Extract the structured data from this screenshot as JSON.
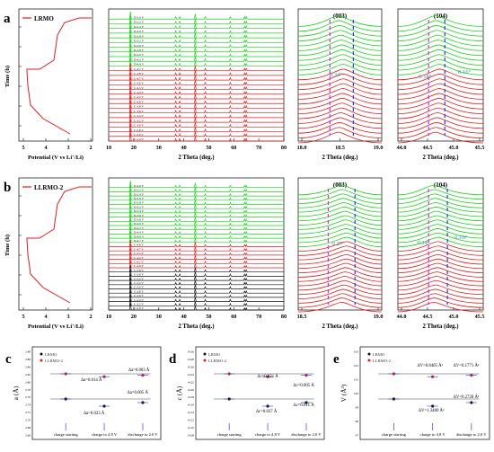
{
  "colors": {
    "green": "#1bd31b",
    "red": "#e01e1e",
    "black": "#111111",
    "blue": "#1f3fd6",
    "magenta": "#e02bd0",
    "teal": "#2f8f8f",
    "purple": "#7b3fe4"
  },
  "panel_labels": {
    "a": "a",
    "b": "b",
    "c": "c",
    "d": "d",
    "e": "e"
  },
  "legend": {
    "lrmo": "LRMO",
    "llrmo2": "LLRMO-2"
  },
  "texts": {
    "time_label": "Time (h)",
    "potential_label": "Potential (V vs Li",
    "potential_sup": "+",
    "potential_tail": "/Li)",
    "twotheta_label": "2 Theta (deg.)",
    "peak_003": "(003)",
    "peak_104": "(104)"
  },
  "chart_data": [
    {
      "type": "line",
      "panel": "a-voltage",
      "legend": "LRMO",
      "xlabel": "Potential (V vs Li+/Li)",
      "ylabel": "Time (h)",
      "x_ticks": [
        "5",
        "4",
        "3",
        "2"
      ],
      "xlim": [
        5,
        2
      ]
    },
    {
      "type": "line",
      "panel": "a-xrd-full",
      "xlabel": "2 Theta (deg.)",
      "x_ticks": [
        "10",
        "20",
        "30",
        "40",
        "50",
        "60",
        "70",
        "80"
      ],
      "xlim": [
        10,
        80
      ],
      "scan_labels": [
        "D-2.0 V",
        "D-2.2 V",
        "D-2.4 V",
        "D-2.6 V",
        "D-2.8 V",
        "D-3.2 V",
        "D-3.6 V",
        "D-3.8 V",
        "D-4.0 V",
        "D-4.2 V",
        "D-4.4 V",
        "C-4.7 V",
        "C-4.8 V",
        "C-4.7 V",
        "C-4.6 V",
        "C-4.5 V",
        "C-4.4 V",
        "C-4.2 V",
        "C-4.0 V",
        "C-3.8 V",
        "C-3.6 V",
        "C-3.4 V",
        "C-3.2 V",
        "C-3.0 V",
        "C-2.8 V",
        "C-2.6 V",
        "C-2.4 V"
      ]
    },
    {
      "type": "line",
      "panel": "a-xrd-003",
      "xlabel": "2 Theta (deg.)",
      "x_ticks": [
        "18.0",
        "18.5",
        "19.0"
      ],
      "xlim": [
        18.0,
        19.0
      ],
      "annotations": [
        "(003)",
        "0.34°"
      ]
    },
    {
      "type": "line",
      "panel": "a-xrd-104",
      "xlabel": "2 Theta (deg.)",
      "x_ticks": [
        "44.0",
        "44.5",
        "45.0",
        "45.5"
      ],
      "xlim": [
        44.0,
        45.5
      ],
      "annotations": [
        "(104)",
        "0.18°",
        "0.16°"
      ]
    },
    {
      "type": "line",
      "panel": "b-voltage",
      "legend": "LLRMO-2",
      "xlabel": "Potential (V vs Li+/Li)",
      "ylabel": "Time (h)",
      "x_ticks": [
        "5",
        "4",
        "3",
        "2"
      ],
      "xlim": [
        5,
        2
      ]
    },
    {
      "type": "line",
      "panel": "b-xrd-full",
      "xlabel": "2 Theta (deg.)",
      "x_ticks": [
        "10",
        "20",
        "30",
        "40",
        "50",
        "60",
        "70",
        "80"
      ],
      "xlim": [
        10,
        80
      ],
      "scan_labels": [
        "D-2.0 V",
        "D-2.2 V",
        "D-2.4 V",
        "D-2.6 V",
        "D-2.8 V",
        "D-3.2 V",
        "D-3.4 V",
        "D-3.6 V",
        "D-3.8 V",
        "D-4.0 V",
        "D-4.2 V",
        "D-4.4 V",
        "D-4.6 V",
        "D-4.7 V",
        "C-4.8 V",
        "C-4.7 V",
        "C-4.5 V",
        "C-4.4 V",
        "C-4.2 V",
        "C-4.0 V",
        "C-3.8 V",
        "C-3.6 V",
        "C-3.4 V",
        "C-3.2 V",
        "C-3.0 V",
        "C-2.8 V",
        "C-2.6 V",
        "C-2.4 V",
        "C-2.2 V",
        "C-2.0 V"
      ]
    },
    {
      "type": "line",
      "panel": "b-xrd-003",
      "xlabel": "2 Theta (deg.)",
      "x_ticks": [
        "18.5",
        "19.0"
      ],
      "xlim": [
        18.2,
        19.1
      ],
      "annotations": [
        "(003)",
        "0.27°"
      ]
    },
    {
      "type": "line",
      "panel": "b-xrd-104",
      "xlabel": "2 Theta (deg.)",
      "x_ticks": [
        "44.0",
        "44.5",
        "45.0",
        "45.5"
      ],
      "xlim": [
        44.0,
        45.5
      ],
      "annotations": [
        "(104)",
        "0.14°",
        "0.16°"
      ]
    },
    {
      "type": "scatter",
      "panel": "c",
      "ylabel": "a (Å)",
      "y_ticks": [
        "2.88",
        "2.86",
        "2.84",
        "2.82",
        "2.80",
        "2.78",
        "2.76",
        "2.74",
        "2.72",
        "2.70",
        "2.68",
        "2.66"
      ],
      "categories": [
        "charge starting",
        "charge to 4.8 V",
        "discharge to 2.0 V"
      ],
      "series": [
        {
          "name": "LRMO",
          "values": [
            2.707,
            2.7,
            2.701
          ]
        },
        {
          "name": "LLRMO-2",
          "values": [
            2.7,
            2.699,
            2.703
          ]
        }
      ],
      "annotations": [
        "Δa=0.003 Å",
        "Δa=0.014 Å",
        "Δa=0.005 Å",
        "Δa=0.023 Å"
      ]
    },
    {
      "type": "scatter",
      "panel": "d",
      "ylabel": "c (Å)",
      "y_ticks": [
        "14.30",
        "14.28",
        "14.26",
        "14.24",
        "14.22",
        "14.20",
        "14.18",
        "14.16",
        "14.14",
        "14.12",
        "14.10",
        "14.08"
      ],
      "categories": [
        "charge starting",
        "charge to 4.8 V",
        "discharge to 2.0 V"
      ],
      "series": [
        {
          "name": "LRMO",
          "values": [
            14.212,
            14.233,
            14.222
          ]
        },
        {
          "name": "LLRMO-2",
          "values": [
            14.215,
            14.236,
            14.225
          ]
        }
      ],
      "annotations": [
        "Δc=0.021 Å",
        "Δc=0.005 Å",
        "Δc=0.037 Å",
        "Δc=0.011 Å"
      ]
    },
    {
      "type": "scatter",
      "panel": "e",
      "ylabel": "V (Å³)",
      "y_ticks": [
        "103",
        "102",
        "101",
        "100",
        "99",
        "98",
        "97"
      ],
      "categories": [
        "charge starting",
        "charge to 4.8 V",
        "discharge to 2.0 V"
      ],
      "series": [
        {
          "name": "LRMO",
          "values": [
            101.7,
            100.9,
            101.1
          ]
        },
        {
          "name": "LLRMO-2",
          "values": [
            100.4,
            99.1,
            100.1
          ]
        }
      ],
      "annotations": [
        "ΔV=0.8405 Å³",
        "ΔV=0.1771 Å³",
        "ΔV=0.2728 Å³",
        "ΔV=1.3480 Å³"
      ]
    }
  ]
}
